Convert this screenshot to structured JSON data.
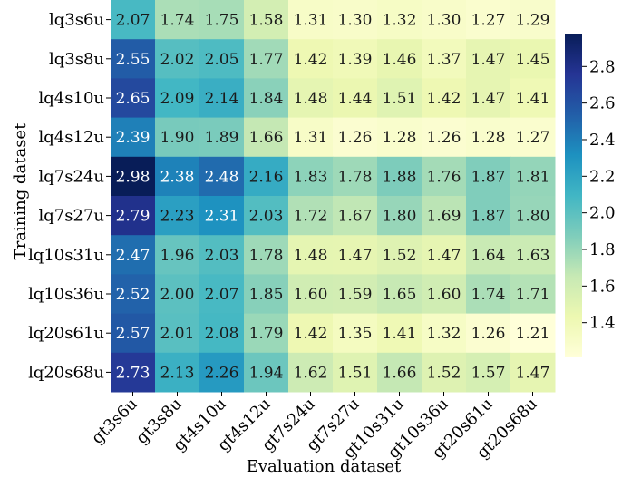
{
  "chart_data": {
    "type": "heatmap",
    "xlabel": "Evaluation dataset",
    "ylabel": "Training dataset",
    "x_categories": [
      "gt3s6u",
      "gt3s8u",
      "gt4s10u",
      "gt4s12u",
      "gt7s24u",
      "gt7s27u",
      "gt10s31u",
      "gt10s36u",
      "gt20s61u",
      "gt20s68u"
    ],
    "y_categories": [
      "lq3s6u",
      "lq3s8u",
      "lq4s10u",
      "lq4s12u",
      "lq7s24u",
      "lq7s27u",
      "lq10s31u",
      "lq10s36u",
      "lq20s61u",
      "lq20s68u"
    ],
    "values": [
      [
        2.07,
        1.74,
        1.75,
        1.58,
        1.31,
        1.3,
        1.32,
        1.3,
        1.27,
        1.29
      ],
      [
        2.55,
        2.02,
        2.05,
        1.77,
        1.42,
        1.39,
        1.46,
        1.37,
        1.47,
        1.45
      ],
      [
        2.65,
        2.09,
        2.14,
        1.84,
        1.48,
        1.44,
        1.51,
        1.42,
        1.47,
        1.41
      ],
      [
        2.39,
        1.9,
        1.89,
        1.66,
        1.31,
        1.26,
        1.28,
        1.26,
        1.28,
        1.27
      ],
      [
        2.98,
        2.38,
        2.48,
        2.16,
        1.83,
        1.78,
        1.88,
        1.76,
        1.87,
        1.81
      ],
      [
        2.79,
        2.23,
        2.31,
        2.03,
        1.72,
        1.67,
        1.8,
        1.69,
        1.87,
        1.8
      ],
      [
        2.47,
        1.96,
        2.03,
        1.78,
        1.48,
        1.47,
        1.52,
        1.47,
        1.64,
        1.63
      ],
      [
        2.52,
        2.0,
        2.07,
        1.85,
        1.6,
        1.59,
        1.65,
        1.6,
        1.74,
        1.71
      ],
      [
        2.57,
        2.01,
        2.08,
        1.79,
        1.42,
        1.35,
        1.41,
        1.32,
        1.26,
        1.21
      ],
      [
        2.73,
        2.13,
        2.26,
        1.94,
        1.62,
        1.51,
        1.66,
        1.52,
        1.57,
        1.47
      ]
    ],
    "colormap": "YlGnBu",
    "vmin": 1.21,
    "vmax": 2.98,
    "colorbar_ticks": [
      1.4,
      1.6,
      1.8,
      2.0,
      2.2,
      2.4,
      2.6,
      2.8
    ],
    "colorbar_tick_labels": [
      "1.4",
      "1.6",
      "1.8",
      "2.0",
      "2.2",
      "2.4",
      "2.6",
      "2.8"
    ],
    "colorbar_placement": "right"
  }
}
